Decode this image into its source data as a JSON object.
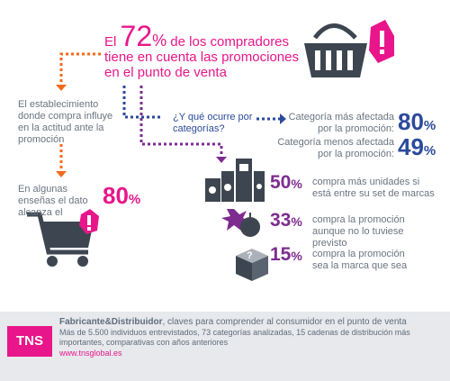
{
  "headline": {
    "prefix": "El ",
    "value": "72",
    "unit": "%",
    "rest": " de los compradores tiene en cuenta las promociones en el punto de venta"
  },
  "left": {
    "establishment": "El establecimiento donde compra influye en la actitud ante la promoción",
    "some_stores": "En algunas enseñas el dato alcanza el",
    "some_value": "80",
    "some_unit": "%"
  },
  "question": "¿Y qué ocurre por categorías?",
  "categories": {
    "most_label": "Categoría más afectada por la promoción:",
    "most_value": "80",
    "most_unit": "%",
    "least_label": "Categoría menos afectada por la promoción:",
    "least_value": "49",
    "least_unit": "%"
  },
  "stats": [
    {
      "value": "50",
      "unit": "%",
      "text": "compra más unidades si está entre su set de marcas"
    },
    {
      "value": "33",
      "unit": "%",
      "text": "compra la promoción aunque no lo tuviese previsto"
    },
    {
      "value": "15",
      "unit": "%",
      "text": "compra la promoción sea la marca que sea"
    }
  ],
  "footer": {
    "logo": "TNS",
    "title": "Fabricante&Distribuidor",
    "title_rest": ", claves para comprender al consumidor en el punto de venta",
    "details": "Más de 5.500 individuos entrevistados, 73 categorías analizadas, 15 cadenas de distribución más importantes, comparativas con años anteriores",
    "url": "www.tnsglobal.es"
  },
  "colors": {
    "pink": "#e8168a",
    "orange": "#f26a1b",
    "blue": "#2b4a9b",
    "purple": "#7d2c8f",
    "gray": "#6a7480"
  }
}
